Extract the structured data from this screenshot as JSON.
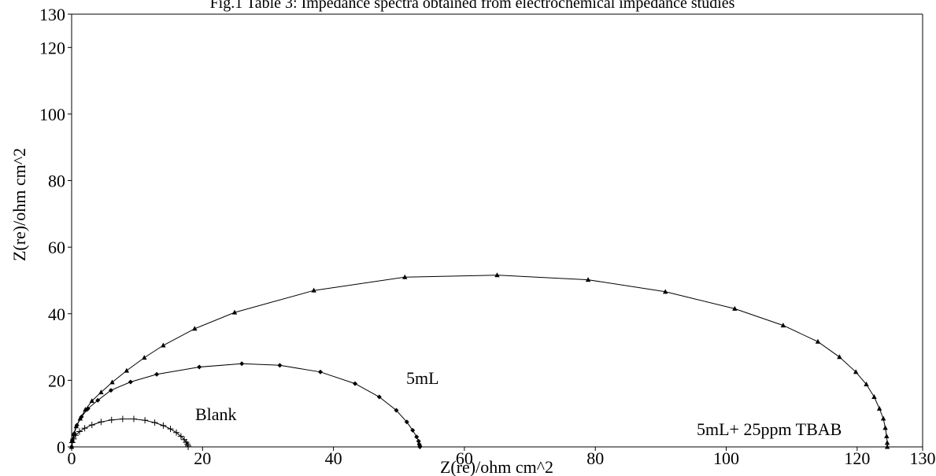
{
  "chart_data": {
    "type": "scatter",
    "title": "Fig.1 Table 3: Impedance spectra obtained from electrochemical impedance studies",
    "xlabel": "Z(re)/ohm cm^2",
    "ylabel": "Z(re)/ohm cm^2",
    "xlim": [
      0,
      130
    ],
    "ylim": [
      0,
      130
    ],
    "x_ticks": [
      0,
      20,
      40,
      60,
      80,
      100,
      120,
      130
    ],
    "y_ticks": [
      0,
      20,
      40,
      60,
      80,
      100,
      120,
      130
    ],
    "grid": false,
    "series": [
      {
        "name": "Blank",
        "marker": "plus",
        "x": [
          0,
          0.1,
          0.3,
          0.6,
          1.2,
          2.0,
          3.1,
          4.5,
          6.1,
          7.8,
          9.5,
          11.2,
          12.7,
          14.0,
          15.1,
          16.0,
          16.7,
          17.2,
          17.5,
          17.7,
          17.8,
          17.8
        ],
        "y": [
          0,
          1.3,
          2.4,
          3.5,
          4.6,
          5.6,
          6.6,
          7.5,
          8.1,
          8.4,
          8.4,
          8.0,
          7.3,
          6.4,
          5.4,
          4.3,
          3.2,
          2.2,
          1.4,
          0.8,
          0.3,
          0
        ]
      },
      {
        "name": "5mL",
        "marker": "diamond",
        "x": [
          0,
          0.1,
          0.4,
          0.8,
          1.5,
          2.5,
          4.0,
          6.0,
          9.0,
          13.0,
          19.5,
          26.0,
          31.8,
          38.0,
          43.3,
          47.0,
          49.6,
          51.2,
          52.1,
          52.7,
          53.0,
          53.1,
          53.2,
          53.2
        ],
        "y": [
          0,
          2.0,
          4.0,
          6.5,
          9.0,
          11.5,
          14.0,
          17.0,
          19.5,
          21.8,
          24.0,
          25.0,
          24.5,
          22.5,
          19.0,
          15.0,
          11.0,
          7.5,
          5.0,
          3.0,
          1.7,
          0.8,
          0.3,
          0
        ]
      },
      {
        "name": "5mL+ 25ppm TBAB",
        "marker": "triangle",
        "x": [
          0,
          0.1,
          0.3,
          0.7,
          1.3,
          2.1,
          3.1,
          4.5,
          6.2,
          8.4,
          11.1,
          14.0,
          18.8,
          24.9,
          37.0,
          50.9,
          65.0,
          78.9,
          90.7,
          101.3,
          108.7,
          114.0,
          117.3,
          119.8,
          121.4,
          122.6,
          123.4,
          124.0,
          124.3,
          124.5,
          124.6,
          124.6
        ],
        "y": [
          0,
          2.0,
          3.8,
          6.2,
          8.5,
          11.2,
          13.8,
          16.4,
          19.4,
          22.9,
          26.8,
          30.5,
          35.5,
          40.4,
          47.0,
          51.0,
          51.6,
          50.2,
          46.6,
          41.5,
          36.5,
          31.6,
          27.0,
          22.5,
          18.8,
          15.0,
          11.5,
          8.5,
          5.7,
          3.2,
          1.2,
          0
        ]
      }
    ],
    "annotations": [
      "Blank",
      "5mL",
      "5mL+ 25ppm TBAB"
    ]
  }
}
